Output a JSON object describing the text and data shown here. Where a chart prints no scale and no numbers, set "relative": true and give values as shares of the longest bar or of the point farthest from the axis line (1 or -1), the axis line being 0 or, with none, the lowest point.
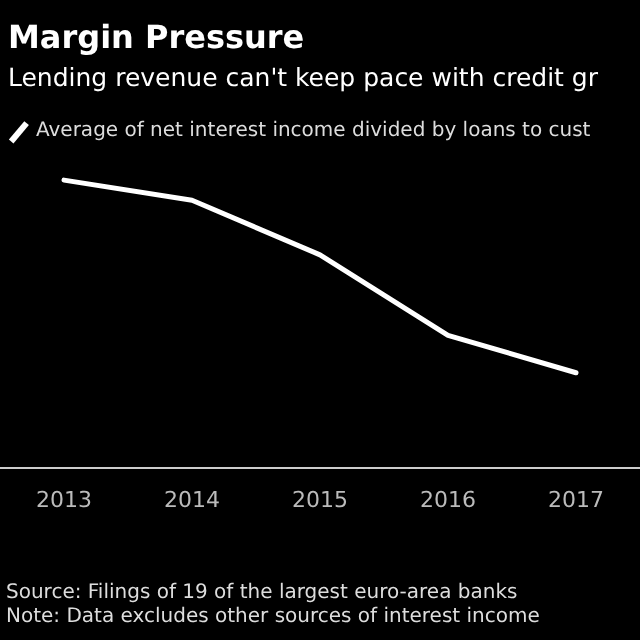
{
  "chart_data": {
    "type": "line",
    "title": "Margin Pressure",
    "subtitle": "Lending revenue can't keep pace with credit gr",
    "categories": [
      "2013",
      "2014",
      "2015",
      "2016",
      "2017"
    ],
    "series": [
      {
        "name": "Average of net interest income divided by loans to cust",
        "color": "#ffffff",
        "values": [
          1,
          0.93,
          0.74,
          0.46,
          0.33
        ]
      }
    ],
    "relative": true,
    "legend": "top left",
    "marker": "none",
    "line_style": "solid",
    "annotations": [
      "Source: Filings of 19 of the largest euro-area banks",
      "Note: Data excludes other sources of interest income"
    ]
  }
}
